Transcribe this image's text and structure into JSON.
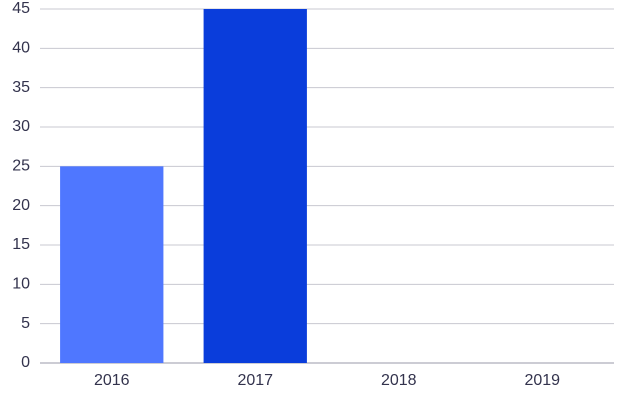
{
  "chart_data": {
    "type": "bar",
    "categories": [
      "2016",
      "2017",
      "2018",
      "2019"
    ],
    "values": [
      25,
      45,
      0,
      0
    ],
    "colors": [
      "#4f77ff",
      "#0a3ddb",
      null,
      null
    ],
    "ylim": [
      0,
      45
    ],
    "yticks": [
      0,
      5,
      10,
      15,
      20,
      25,
      30,
      35,
      40,
      45
    ],
    "grid": true
  }
}
